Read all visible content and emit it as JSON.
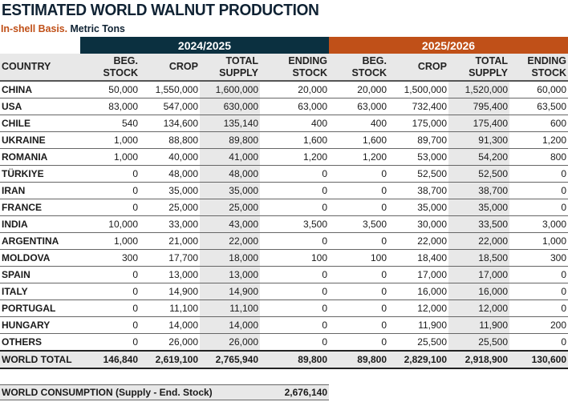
{
  "title": "ESTIMATED WORLD WALNUT PRODUCTION",
  "subtitle_basis": "In-shell Basis.",
  "subtitle_units": "Metric Tons",
  "colors": {
    "year1_band": "#0b3040",
    "year2_band": "#c05018",
    "shade": "#e8e8e8"
  },
  "years": [
    "2024/2025",
    "2025/2026"
  ],
  "columns": {
    "country": "COUNTRY",
    "beg_stock": [
      "BEG.",
      "STOCK"
    ],
    "crop": "CROP",
    "total_supply": [
      "TOTAL",
      "SUPPLY"
    ],
    "ending_stock": [
      "ENDING",
      "STOCK"
    ]
  },
  "rows": [
    [
      "CHINA",
      "50,000",
      "1,550,000",
      "1,600,000",
      "20,000",
      "20,000",
      "1,500,000",
      "1,520,000",
      "60,000"
    ],
    [
      "USA",
      "83,000",
      "547,000",
      "630,000",
      "63,000",
      "63,000",
      "732,400",
      "795,400",
      "63,500"
    ],
    [
      "CHILE",
      "540",
      "134,600",
      "135,140",
      "400",
      "400",
      "175,000",
      "175,400",
      "600"
    ],
    [
      "UKRAINE",
      "1,000",
      "88,800",
      "89,800",
      "1,600",
      "1,600",
      "89,700",
      "91,300",
      "1,200"
    ],
    [
      "ROMANIA",
      "1,000",
      "40,000",
      "41,000",
      "1,200",
      "1,200",
      "53,000",
      "54,200",
      "800"
    ],
    [
      "TÜRKIYE",
      "0",
      "48,000",
      "48,000",
      "0",
      "0",
      "52,500",
      "52,500",
      "0"
    ],
    [
      "IRAN",
      "0",
      "35,000",
      "35,000",
      "0",
      "0",
      "38,700",
      "38,700",
      "0"
    ],
    [
      "FRANCE",
      "0",
      "25,000",
      "25,000",
      "0",
      "0",
      "35,000",
      "35,000",
      "0"
    ],
    [
      "INDIA",
      "10,000",
      "33,000",
      "43,000",
      "3,500",
      "3,500",
      "30,000",
      "33,500",
      "3,000"
    ],
    [
      "ARGENTINA",
      "1,000",
      "21,000",
      "22,000",
      "0",
      "0",
      "22,000",
      "22,000",
      "1,000"
    ],
    [
      "MOLDOVA",
      "300",
      "17,700",
      "18,000",
      "100",
      "100",
      "18,400",
      "18,500",
      "300"
    ],
    [
      "SPAIN",
      "0",
      "13,000",
      "13,000",
      "0",
      "0",
      "17,000",
      "17,000",
      "0"
    ],
    [
      "ITALY",
      "0",
      "14,900",
      "14,900",
      "0",
      "0",
      "16,000",
      "16,000",
      "0"
    ],
    [
      "PORTUGAL",
      "0",
      "11,100",
      "11,100",
      "0",
      "0",
      "12,000",
      "12,000",
      "0"
    ],
    [
      "HUNGARY",
      "0",
      "14,000",
      "14,000",
      "0",
      "0",
      "11,900",
      "11,900",
      "200"
    ],
    [
      "OTHERS",
      "0",
      "26,000",
      "26,000",
      "0",
      "0",
      "25,500",
      "25,500",
      "0"
    ]
  ],
  "total": [
    "WORLD TOTAL",
    "146,840",
    "2,619,100",
    "2,765,940",
    "89,800",
    "89,800",
    "2,829,100",
    "2,918,900",
    "130,600"
  ],
  "consumption": {
    "label": "WORLD CONSUMPTION (Supply - End. Stock)",
    "value": "2,676,140"
  }
}
